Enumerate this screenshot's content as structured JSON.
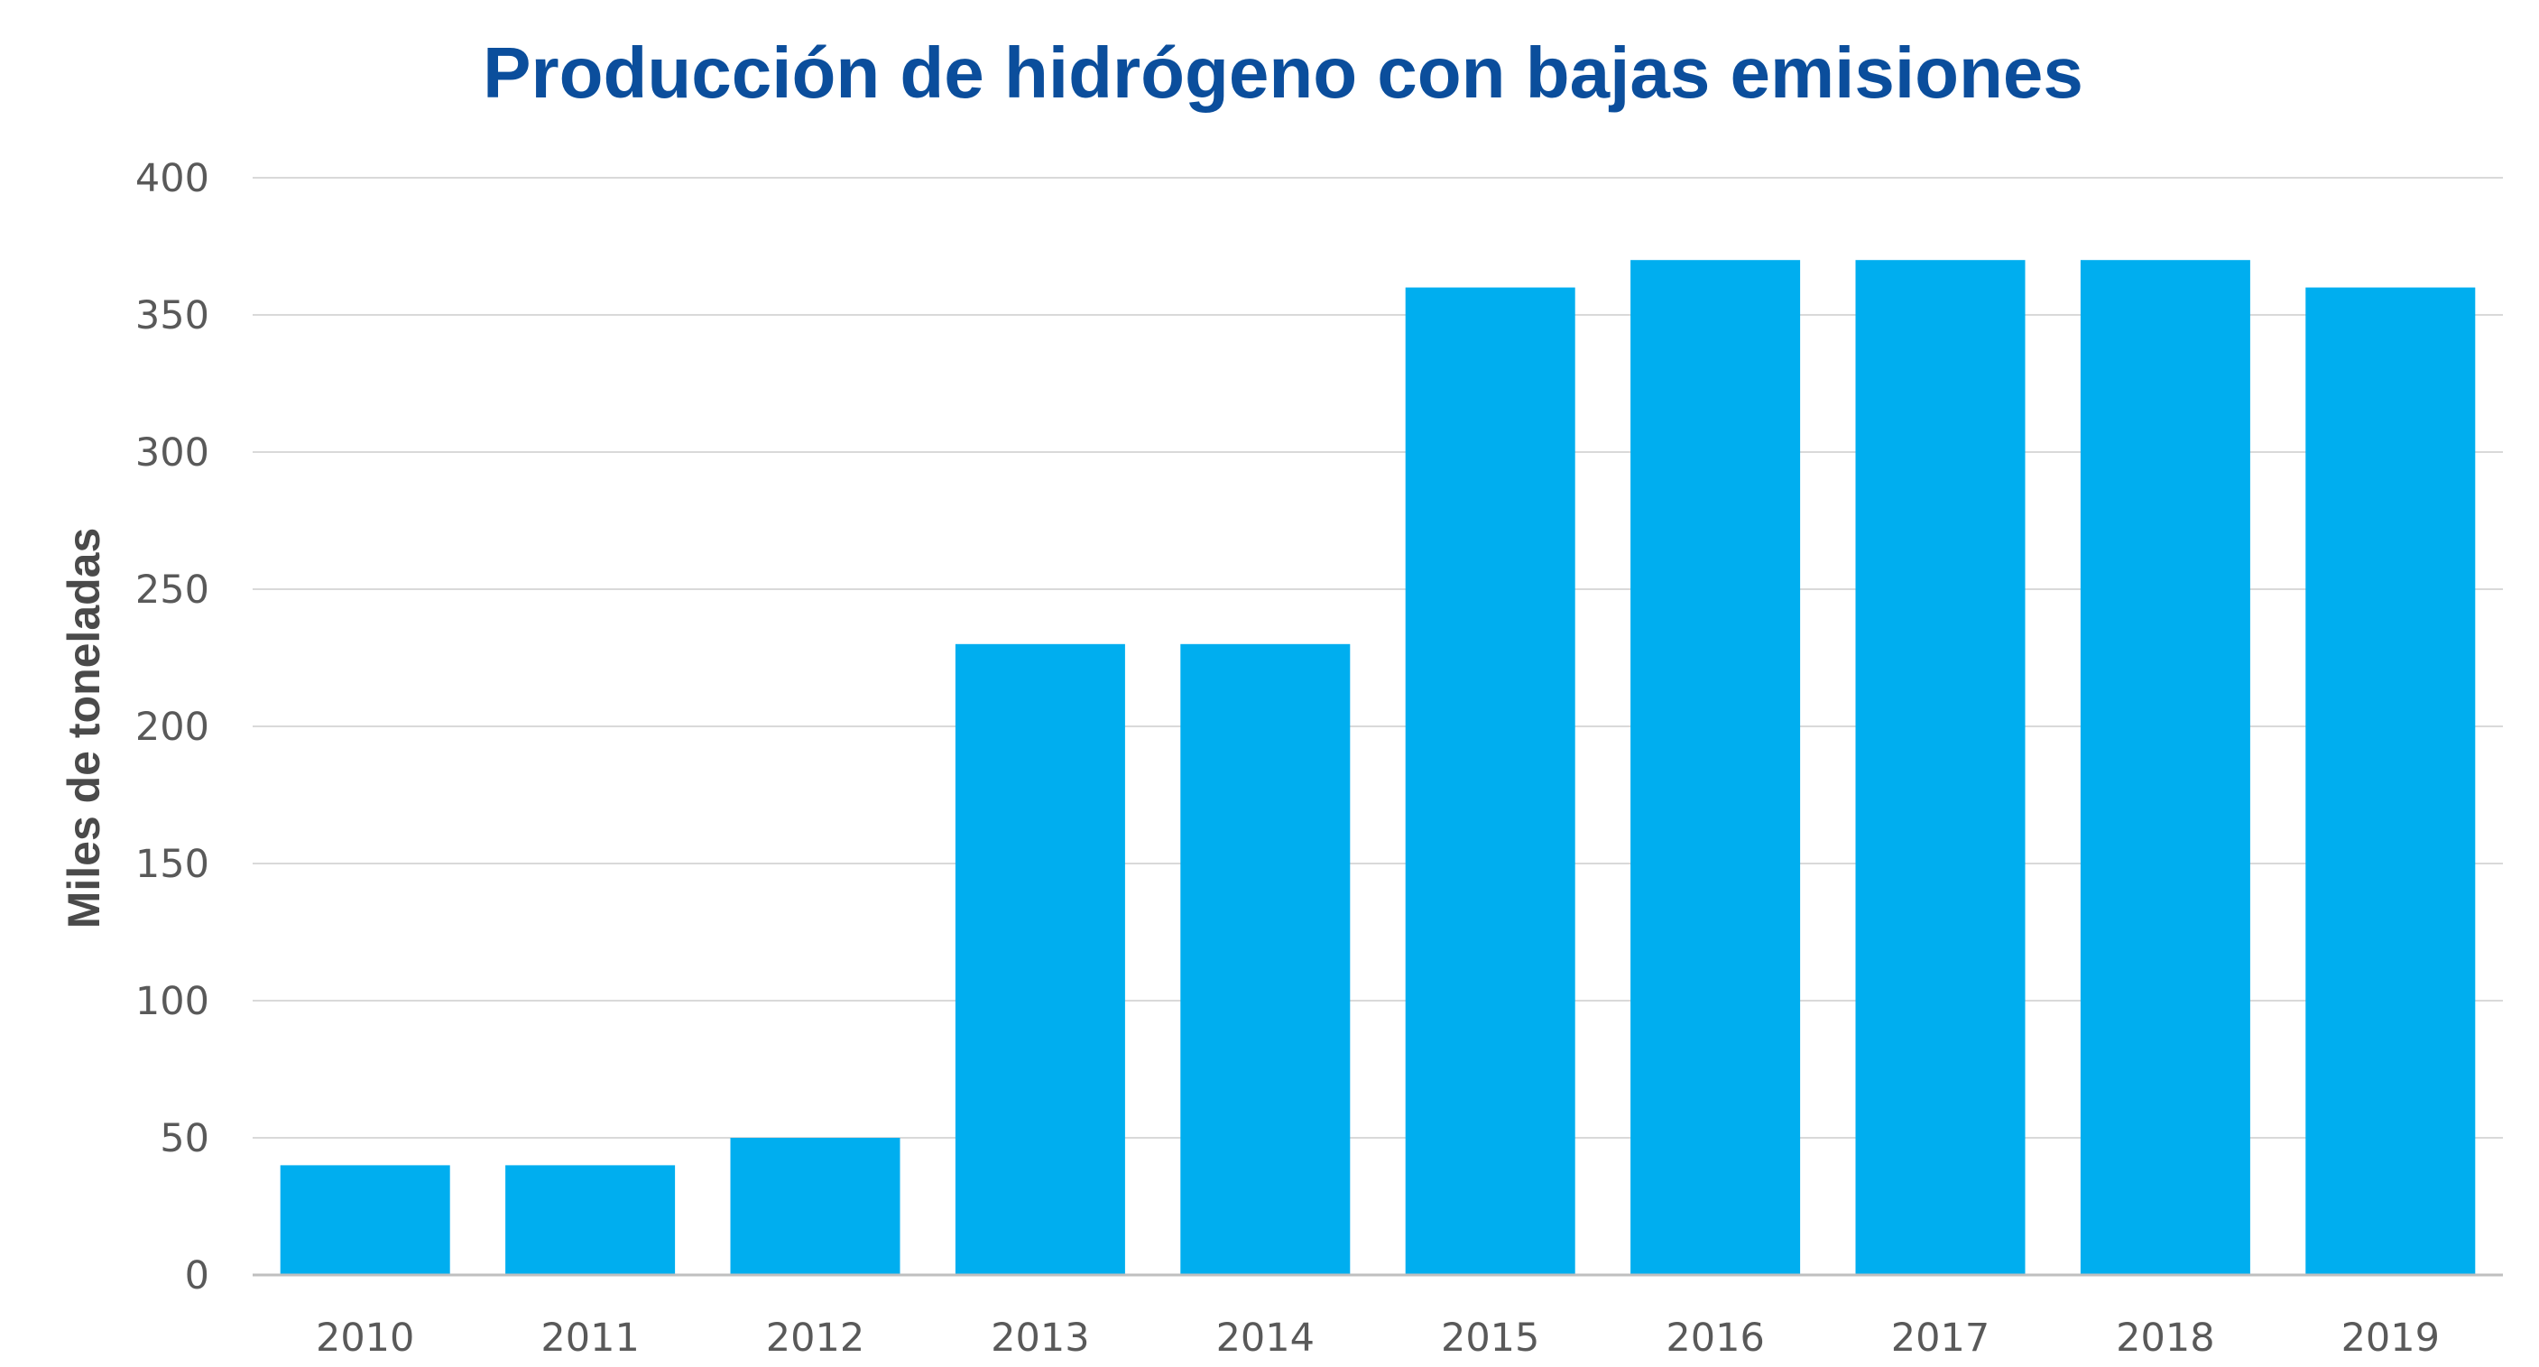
{
  "colors": {
    "title": "#0b4e9c",
    "bar": "#00aeef",
    "grid": "#d9d9d9",
    "axis": "#bfbfbf",
    "tick_text": "#595959",
    "ylabel_text": "#4a4a4a"
  },
  "chart_data": {
    "type": "bar",
    "title": "Producción de hidrógeno con bajas emisiones",
    "xlabel": "",
    "ylabel": "Miles de toneladas",
    "categories": [
      "2010",
      "2011",
      "2012",
      "2013",
      "2014",
      "2015",
      "2016",
      "2017",
      "2018",
      "2019"
    ],
    "values": [
      40,
      40,
      50,
      230,
      230,
      360,
      370,
      370,
      370,
      360
    ],
    "ylim": [
      0,
      400
    ],
    "yticks": [
      "0",
      "50",
      "100",
      "150",
      "200",
      "250",
      "300",
      "350",
      "400"
    ],
    "grid": true,
    "legend": "none"
  }
}
